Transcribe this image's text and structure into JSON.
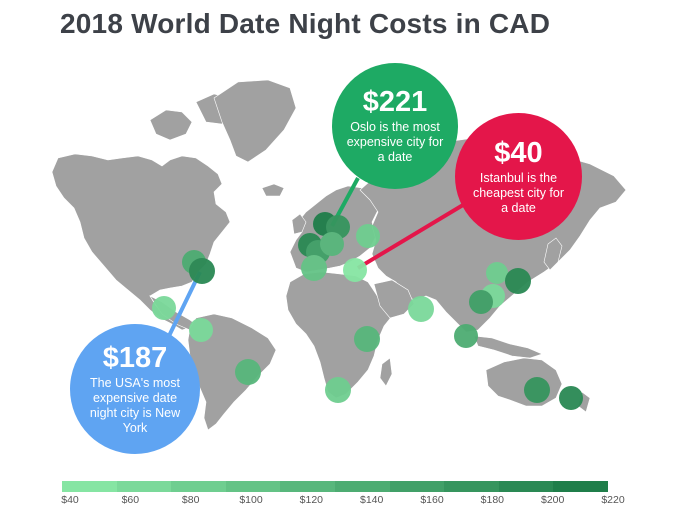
{
  "title": "2018 World Date Night Costs in CAD",
  "callouts": {
    "oslo": {
      "value": "$221",
      "text": "Oslo is the most expensive city for a date",
      "color": "#1eaa64"
    },
    "istanbul": {
      "value": "$40",
      "text": "Istanbul is the cheapest city for a date",
      "color": "#e4164a"
    },
    "usa": {
      "value": "$187",
      "text": "The USA's most expensive date night city is New York",
      "color": "#5fa4f2"
    }
  },
  "legend": {
    "labels": [
      "$40",
      "$60",
      "$80",
      "$100",
      "$120",
      "$140",
      "$160",
      "$180",
      "$200",
      "$220"
    ],
    "colors": [
      "#86e5a3",
      "#7bd99a",
      "#6fce90",
      "#64c386",
      "#58b77c",
      "#4dac72",
      "#41a068",
      "#36955e",
      "#2a8954",
      "#1f7e4a"
    ]
  },
  "colors": {
    "land": "#a1a1a1",
    "title": "#3d4148",
    "line_blue": "#5fa4f2",
    "line_green": "#1eaa64",
    "line_red": "#e4164a"
  }
}
